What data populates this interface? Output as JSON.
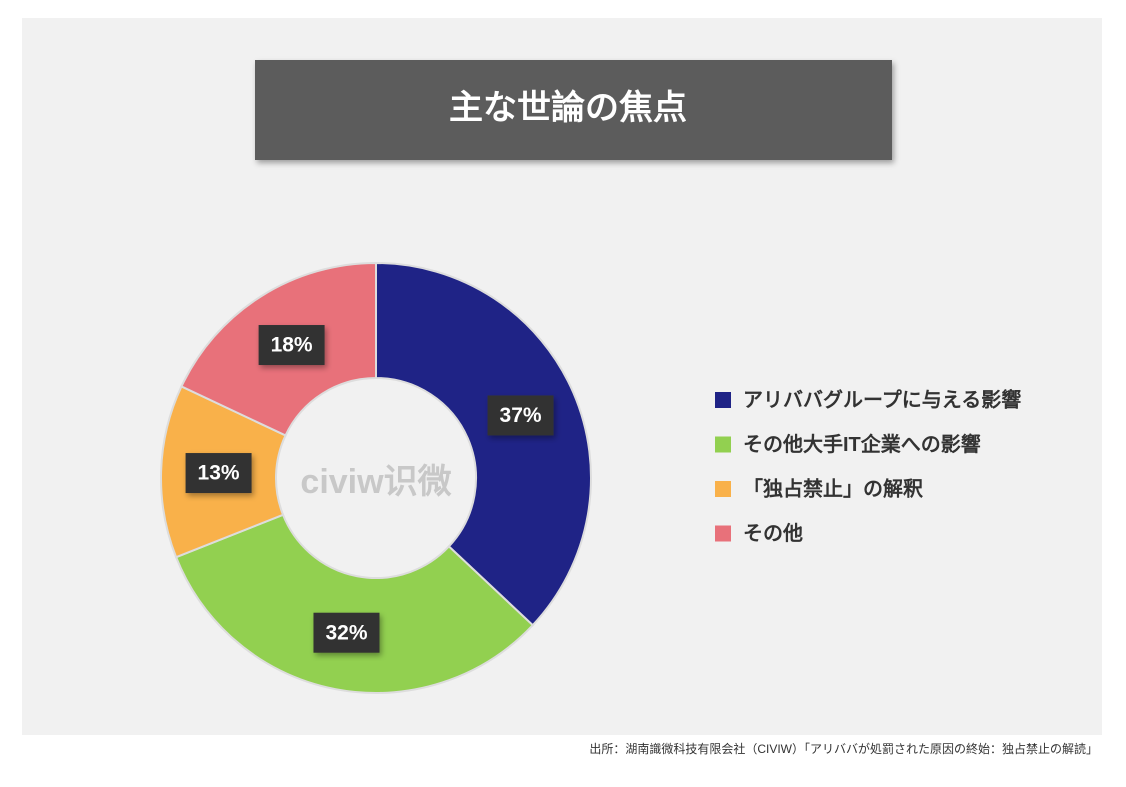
{
  "chart_data": {
    "type": "donut",
    "title": "主な世論の焦点",
    "categories": [
      "アリババグループに与える影響",
      "その他大手IT企業への影響",
      "「独占禁止」の解釈",
      "その他"
    ],
    "values": [
      37,
      32,
      13,
      18
    ],
    "value_labels": [
      "37%",
      "32%",
      "13%",
      "18%"
    ],
    "colors": [
      "#1f2386",
      "#92d050",
      "#f9b14a",
      "#e8717a"
    ],
    "watermark": "civiw识微",
    "source": "出所：湖南識微科技有限会社（CIVIW）「アリババが処罰された原因の終始：独占禁止の解読」",
    "legend": "right"
  }
}
